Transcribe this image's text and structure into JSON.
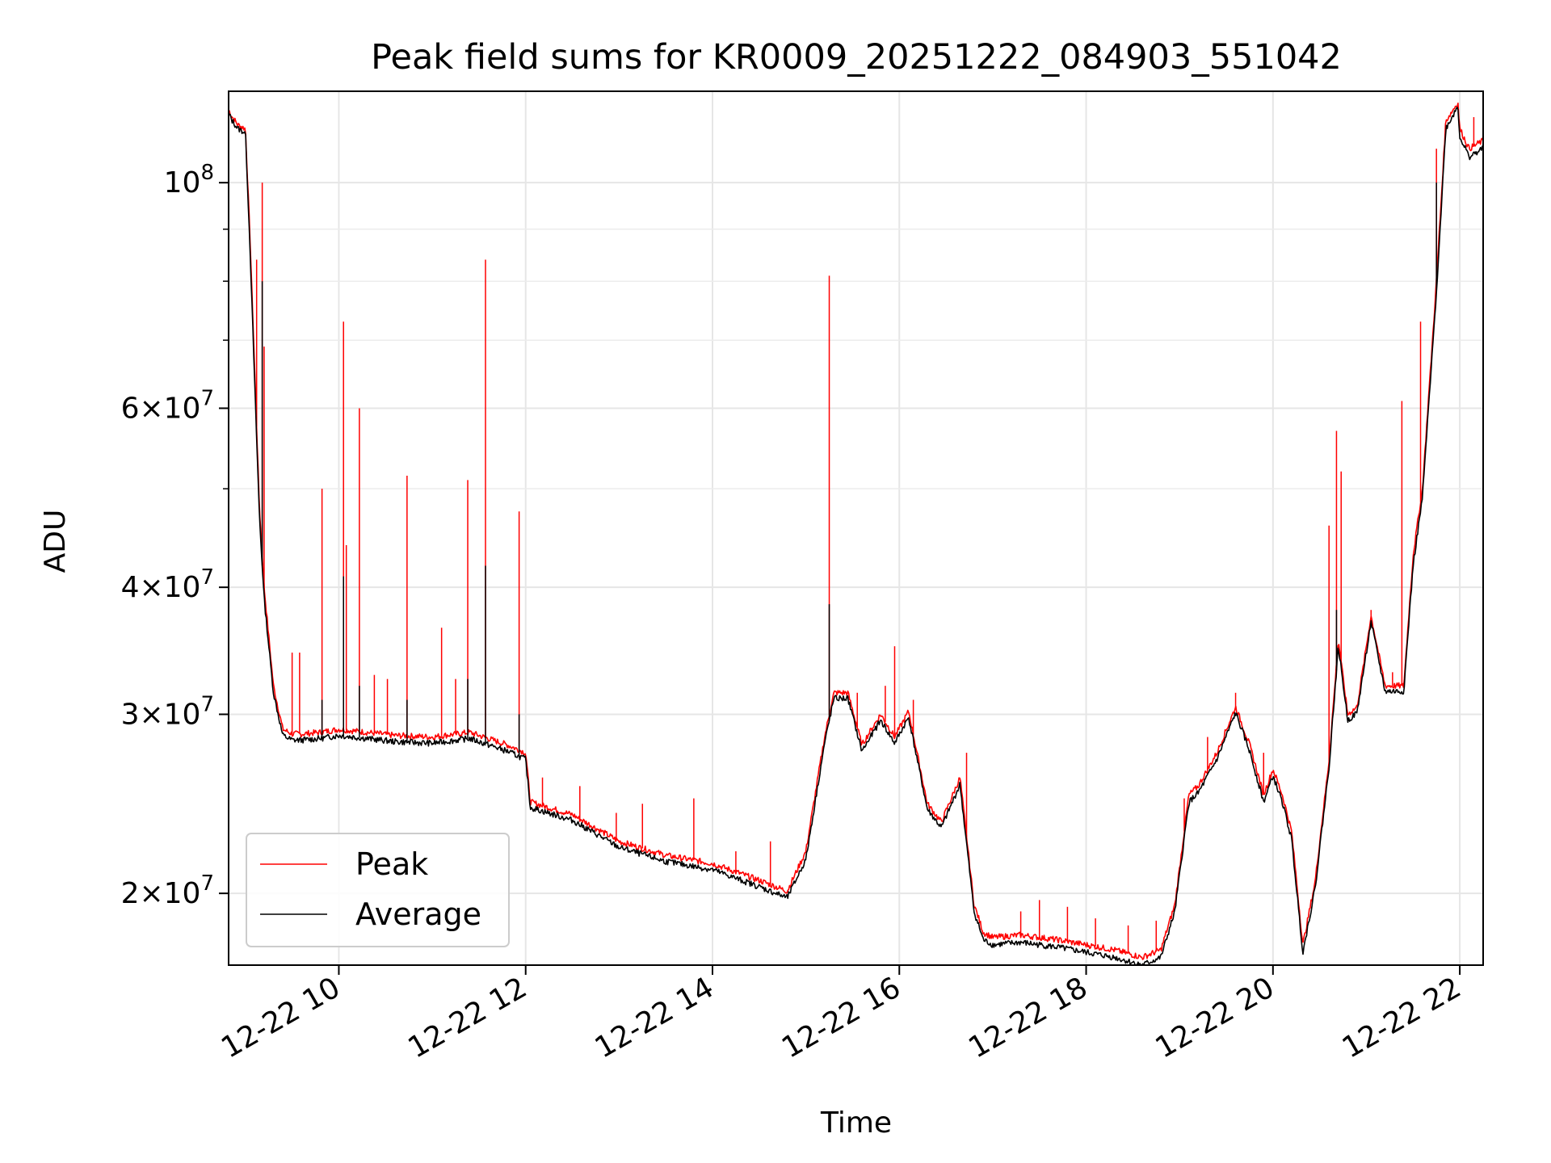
{
  "chart_data": {
    "type": "line",
    "title": "Peak field sums for KR0009_20251222_084903_551042",
    "xlabel": "Time",
    "ylabel": "ADU",
    "yscale": "log",
    "xlim": [
      8.82,
      22.25
    ],
    "ylim": [
      17000000,
      123000000
    ],
    "grid": true,
    "legend_position": "lower-left",
    "x_ticks": [
      {
        "value": 10,
        "label": "12-22 10"
      },
      {
        "value": 12,
        "label": "12-22 12"
      },
      {
        "value": 14,
        "label": "12-22 14"
      },
      {
        "value": 16,
        "label": "12-22 16"
      },
      {
        "value": 18,
        "label": "12-22 18"
      },
      {
        "value": 20,
        "label": "12-22 20"
      },
      {
        "value": 22,
        "label": "12-22 22"
      }
    ],
    "y_ticks": [
      {
        "value": 20000000,
        "mantissa": "2",
        "exp": "7"
      },
      {
        "value": 30000000,
        "mantissa": "3",
        "exp": "7"
      },
      {
        "value": 40000000,
        "mantissa": "4",
        "exp": "7"
      },
      {
        "value": 60000000,
        "mantissa": "6",
        "exp": "7"
      },
      {
        "value": 100000000,
        "mantissa": "",
        "exp": "8"
      }
    ],
    "y_minor_ticks": [
      50000000,
      70000000,
      80000000,
      90000000
    ],
    "colors": {
      "peak": "#ff0000",
      "average": "#000000"
    },
    "series": [
      {
        "name": "Peak",
        "color": "#ff0000",
        "x": [
          8.82,
          8.86,
          8.92,
          9.0,
          9.05,
          9.1,
          9.15,
          9.2,
          9.3,
          9.4,
          9.5,
          9.6,
          9.8,
          10.0,
          10.3,
          10.6,
          11.0,
          11.4,
          11.6,
          11.8,
          12.0,
          12.05,
          12.5,
          13.0,
          13.5,
          14.0,
          14.5,
          14.8,
          15.0,
          15.2,
          15.3,
          15.45,
          15.6,
          15.8,
          15.95,
          16.1,
          16.3,
          16.45,
          16.65,
          16.8,
          16.9,
          17.0,
          17.3,
          17.7,
          18.0,
          18.3,
          18.6,
          18.8,
          18.95,
          19.1,
          19.2,
          19.4,
          19.6,
          19.75,
          19.9,
          20.0,
          20.1,
          20.2,
          20.32,
          20.45,
          20.6,
          20.7,
          20.8,
          20.9,
          21.05,
          21.2,
          21.4,
          21.5,
          21.6,
          21.75,
          21.85,
          21.98,
          22.0,
          22.1,
          22.25
        ],
        "values": [
          118000000,
          116000000,
          114000000,
          113000000,
          88000000,
          65000000,
          48000000,
          40000000,
          32000000,
          29000000,
          28700000,
          28700000,
          28800000,
          29000000,
          28800000,
          28600000,
          28500000,
          28800000,
          28400000,
          28000000,
          27500000,
          24600000,
          23900000,
          22500000,
          21800000,
          21400000,
          20600000,
          20100000,
          22000000,
          28500000,
          31500000,
          31500000,
          28000000,
          30000000,
          28500000,
          30200000,
          24500000,
          23500000,
          26000000,
          19500000,
          18300000,
          18100000,
          18200000,
          18000000,
          17800000,
          17600000,
          17300000,
          17600000,
          19500000,
          25000000,
          25500000,
          27500000,
          30500000,
          28000000,
          25000000,
          26500000,
          25000000,
          23000000,
          17800000,
          20500000,
          27000000,
          35500000,
          30000000,
          30500000,
          37500000,
          32000000,
          32000000,
          43000000,
          50000000,
          80000000,
          115000000,
          120000000,
          113000000,
          108000000,
          110000000
        ],
        "spikes": [
          {
            "x": 9.18,
            "value": 100000000
          },
          {
            "x": 9.12,
            "value": 84000000
          },
          {
            "x": 9.2,
            "value": 69000000
          },
          {
            "x": 9.5,
            "value": 34500000
          },
          {
            "x": 9.58,
            "value": 34500000
          },
          {
            "x": 9.82,
            "value": 50000000
          },
          {
            "x": 10.05,
            "value": 73000000
          },
          {
            "x": 10.08,
            "value": 44000000
          },
          {
            "x": 10.22,
            "value": 60000000
          },
          {
            "x": 10.38,
            "value": 32800000
          },
          {
            "x": 10.52,
            "value": 32500000
          },
          {
            "x": 10.73,
            "value": 51500000
          },
          {
            "x": 11.1,
            "value": 36500000
          },
          {
            "x": 11.25,
            "value": 32500000
          },
          {
            "x": 11.38,
            "value": 51000000
          },
          {
            "x": 11.57,
            "value": 84000000
          },
          {
            "x": 11.93,
            "value": 47500000
          },
          {
            "x": 12.18,
            "value": 26000000
          },
          {
            "x": 12.58,
            "value": 25500000
          },
          {
            "x": 12.97,
            "value": 24000000
          },
          {
            "x": 13.25,
            "value": 24500000
          },
          {
            "x": 13.8,
            "value": 24800000
          },
          {
            "x": 14.25,
            "value": 22000000
          },
          {
            "x": 14.62,
            "value": 22500000
          },
          {
            "x": 15.25,
            "value": 81000000
          },
          {
            "x": 15.55,
            "value": 31500000
          },
          {
            "x": 15.85,
            "value": 32000000
          },
          {
            "x": 15.95,
            "value": 35000000
          },
          {
            "x": 16.15,
            "value": 31000000
          },
          {
            "x": 16.72,
            "value": 27500000
          },
          {
            "x": 17.3,
            "value": 19200000
          },
          {
            "x": 17.5,
            "value": 19700000
          },
          {
            "x": 17.8,
            "value": 19400000
          },
          {
            "x": 18.1,
            "value": 18900000
          },
          {
            "x": 18.45,
            "value": 18600000
          },
          {
            "x": 18.75,
            "value": 18800000
          },
          {
            "x": 19.05,
            "value": 24800000
          },
          {
            "x": 19.3,
            "value": 28500000
          },
          {
            "x": 19.6,
            "value": 31500000
          },
          {
            "x": 19.9,
            "value": 27500000
          },
          {
            "x": 20.6,
            "value": 46000000
          },
          {
            "x": 20.68,
            "value": 57000000
          },
          {
            "x": 20.73,
            "value": 52000000
          },
          {
            "x": 21.05,
            "value": 38000000
          },
          {
            "x": 21.28,
            "value": 33000000
          },
          {
            "x": 21.38,
            "value": 61000000
          },
          {
            "x": 21.58,
            "value": 73000000
          },
          {
            "x": 21.75,
            "value": 108000000
          },
          {
            "x": 22.15,
            "value": 116000000
          }
        ]
      },
      {
        "name": "Average",
        "color": "#000000",
        "x": [
          8.82,
          8.86,
          8.92,
          9.0,
          9.05,
          9.1,
          9.15,
          9.2,
          9.3,
          9.4,
          9.5,
          9.6,
          9.8,
          10.0,
          10.3,
          10.6,
          11.0,
          11.4,
          11.6,
          11.8,
          12.0,
          12.05,
          12.5,
          13.0,
          13.5,
          14.0,
          14.5,
          14.8,
          15.0,
          15.2,
          15.3,
          15.45,
          15.6,
          15.8,
          15.95,
          16.1,
          16.3,
          16.45,
          16.65,
          16.8,
          16.9,
          17.0,
          17.3,
          17.7,
          18.0,
          18.3,
          18.6,
          18.8,
          18.95,
          19.1,
          19.2,
          19.4,
          19.6,
          19.75,
          19.9,
          20.0,
          20.1,
          20.2,
          20.32,
          20.45,
          20.6,
          20.7,
          20.8,
          20.9,
          21.05,
          21.2,
          21.4,
          21.5,
          21.6,
          21.75,
          21.85,
          21.98,
          22.0,
          22.1,
          22.25
        ],
        "values": [
          117000000,
          115000000,
          113000000,
          112000000,
          86000000,
          63000000,
          47000000,
          39000000,
          31500000,
          28600000,
          28300000,
          28300000,
          28400000,
          28600000,
          28400000,
          28200000,
          28100000,
          28400000,
          28000000,
          27600000,
          27100000,
          24300000,
          23600000,
          22200000,
          21500000,
          21100000,
          20300000,
          19800000,
          21600000,
          28100000,
          31100000,
          31100000,
          27600000,
          29600000,
          28100000,
          29800000,
          24200000,
          23200000,
          25600000,
          19200000,
          18000000,
          17800000,
          17900000,
          17700000,
          17500000,
          17300000,
          17000000,
          17300000,
          19200000,
          24600000,
          25100000,
          27100000,
          30100000,
          27600000,
          24600000,
          26100000,
          24600000,
          22600000,
          17500000,
          20200000,
          26600000,
          35000000,
          29600000,
          30100000,
          37000000,
          31600000,
          31600000,
          42000000,
          49000000,
          78000000,
          113000000,
          119000000,
          111000000,
          106000000,
          108000000
        ],
        "spikes": [
          {
            "x": 9.18,
            "value": 80000000
          },
          {
            "x": 9.82,
            "value": 31000000
          },
          {
            "x": 10.05,
            "value": 41000000
          },
          {
            "x": 10.22,
            "value": 32000000
          },
          {
            "x": 10.73,
            "value": 31000000
          },
          {
            "x": 11.38,
            "value": 32500000
          },
          {
            "x": 11.57,
            "value": 42000000
          },
          {
            "x": 11.93,
            "value": 30000000
          },
          {
            "x": 15.25,
            "value": 38500000
          },
          {
            "x": 20.68,
            "value": 38000000
          },
          {
            "x": 21.75,
            "value": 100000000
          }
        ]
      }
    ]
  }
}
